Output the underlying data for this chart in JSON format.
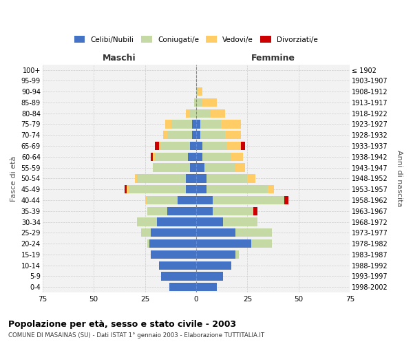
{
  "age_groups": [
    "0-4",
    "5-9",
    "10-14",
    "15-19",
    "20-24",
    "25-29",
    "30-34",
    "35-39",
    "40-44",
    "45-49",
    "50-54",
    "55-59",
    "60-64",
    "65-69",
    "70-74",
    "75-79",
    "80-84",
    "85-89",
    "90-94",
    "95-99",
    "100+"
  ],
  "birth_years": [
    "1998-2002",
    "1993-1997",
    "1988-1992",
    "1983-1987",
    "1978-1982",
    "1973-1977",
    "1968-1972",
    "1963-1967",
    "1958-1962",
    "1953-1957",
    "1948-1952",
    "1943-1947",
    "1938-1942",
    "1933-1937",
    "1928-1932",
    "1923-1927",
    "1918-1922",
    "1913-1917",
    "1908-1912",
    "1903-1907",
    "≤ 1902"
  ],
  "maschi": {
    "celibi": [
      13,
      17,
      18,
      22,
      23,
      22,
      19,
      14,
      9,
      5,
      5,
      3,
      4,
      3,
      2,
      2,
      0,
      0,
      0,
      0,
      0
    ],
    "coniugati": [
      0,
      0,
      0,
      0,
      1,
      5,
      10,
      10,
      15,
      28,
      24,
      18,
      16,
      14,
      12,
      10,
      3,
      1,
      0,
      0,
      0
    ],
    "vedovi": [
      0,
      0,
      0,
      0,
      0,
      0,
      0,
      0,
      1,
      1,
      1,
      0,
      1,
      1,
      2,
      3,
      2,
      0,
      0,
      0,
      0
    ],
    "divorziati": [
      0,
      0,
      0,
      0,
      0,
      0,
      0,
      0,
      0,
      1,
      0,
      0,
      1,
      2,
      0,
      0,
      0,
      0,
      0,
      0,
      0
    ]
  },
  "femmine": {
    "nubili": [
      10,
      13,
      17,
      19,
      27,
      19,
      13,
      8,
      8,
      5,
      5,
      4,
      3,
      3,
      2,
      2,
      0,
      0,
      0,
      0,
      0
    ],
    "coniugate": [
      0,
      0,
      0,
      2,
      10,
      18,
      17,
      20,
      35,
      30,
      20,
      15,
      14,
      12,
      12,
      10,
      7,
      3,
      1,
      0,
      0
    ],
    "vedove": [
      0,
      0,
      0,
      0,
      0,
      0,
      0,
      0,
      0,
      3,
      4,
      5,
      6,
      7,
      8,
      10,
      7,
      7,
      2,
      0,
      0
    ],
    "divorziate": [
      0,
      0,
      0,
      0,
      0,
      0,
      0,
      2,
      2,
      0,
      0,
      0,
      0,
      2,
      0,
      0,
      0,
      0,
      0,
      0,
      0
    ]
  },
  "colors": {
    "celibi": "#4472C4",
    "coniugati": "#C5D9A4",
    "vedovi": "#FFCC66",
    "divorziati": "#CC0000"
  },
  "xlim": 75,
  "title": "Popolazione per età, sesso e stato civile - 2003",
  "subtitle": "COMUNE DI MASAINAS (SU) - Dati ISTAT 1° gennaio 2003 - Elaborazione TUTTITALIA.IT",
  "ylabel_left": "Fasce di età",
  "ylabel_right": "Anni di nascita",
  "xlabel_left": "Maschi",
  "xlabel_right": "Femmine"
}
